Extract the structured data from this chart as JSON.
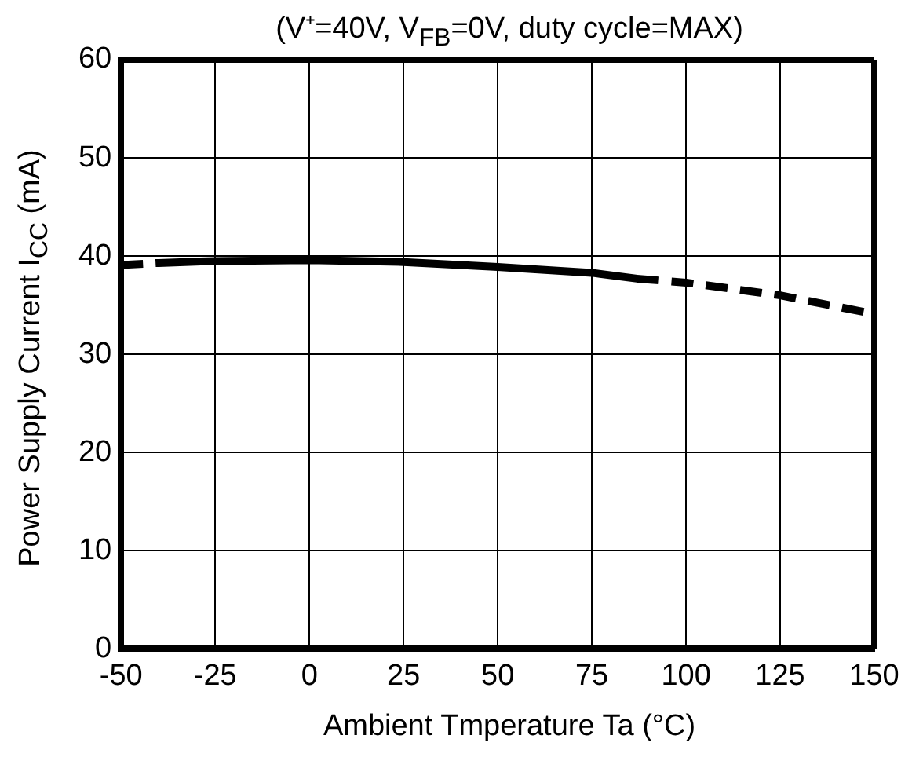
{
  "chart_data": {
    "type": "line",
    "title": "(V⁺=40V, V$_{FB}$=0V, duty cycle=MAX)",
    "xlabel": "Ambient Tmperature Ta  (°C)",
    "ylabel": "Power Supply Current  I$_{CC}$  (mA)",
    "xlim": [
      -50,
      150
    ],
    "xticks": [
      -50,
      -25,
      0,
      25,
      50,
      75,
      100,
      125,
      150
    ],
    "ylim": [
      0,
      60
    ],
    "yticks": [
      0,
      10,
      20,
      30,
      40,
      50,
      60
    ],
    "grid": true,
    "legend": false,
    "marker": "none",
    "series": [
      {
        "color": "#000000",
        "line_style": "dashed",
        "x": [
          -50,
          -40
        ],
        "values": [
          39.1,
          39.3
        ]
      },
      {
        "color": "#000000",
        "line_style": "solid",
        "x": [
          -40,
          -25,
          0,
          25,
          50,
          75,
          87
        ],
        "values": [
          39.3,
          39.5,
          39.6,
          39.4,
          38.9,
          38.3,
          37.7
        ]
      },
      {
        "color": "#000000",
        "line_style": "dashed",
        "x": [
          87,
          100,
          125,
          150
        ],
        "values": [
          37.7,
          37.3,
          36.0,
          34.1
        ]
      }
    ]
  }
}
